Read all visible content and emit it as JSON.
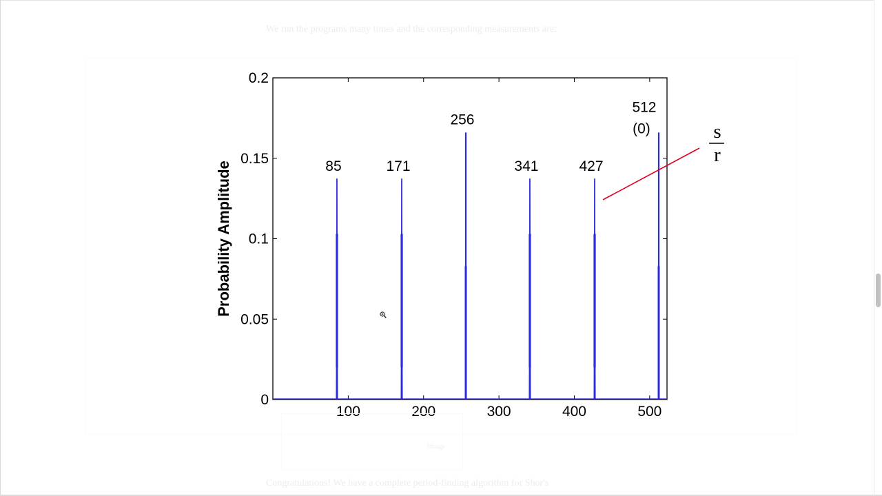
{
  "document": {
    "intro_text": "We run the programs many times and the corresponding measurements are:",
    "caption": "Image",
    "next_text": "Congratulations! We have a complete period-finding algorithm for Shor's"
  },
  "annotation": {
    "fraction_numerator": "s",
    "fraction_denominator": "r",
    "line_color": "#e00020"
  },
  "chart_data": {
    "type": "line",
    "xlabel": "",
    "ylabel": "Probability Amplitude",
    "xlim": [
      0,
      523
    ],
    "ylim": [
      0,
      0.2
    ],
    "x_ticks": [
      100,
      200,
      300,
      400,
      500
    ],
    "x_tick_labels": [
      "100",
      "200",
      "300",
      "400",
      "500"
    ],
    "y_ticks": [
      0,
      0.05,
      0.1,
      0.15,
      0.2
    ],
    "y_tick_labels": [
      "0",
      "0.05",
      "0.1",
      "0.15",
      "0.2"
    ],
    "series_color": "#2a2ae0",
    "peaks": [
      {
        "x": 85,
        "y": 0.137,
        "label": "85",
        "sharp": false
      },
      {
        "x": 171,
        "y": 0.137,
        "label": "171",
        "sharp": false
      },
      {
        "x": 256,
        "y": 0.166,
        "label": "256",
        "sharp": true
      },
      {
        "x": 341,
        "y": 0.137,
        "label": "341",
        "sharp": false
      },
      {
        "x": 427,
        "y": 0.137,
        "label": "427",
        "sharp": false
      },
      {
        "x": 512,
        "y": 0.166,
        "label": "512",
        "sublabel": "(0)",
        "sharp": true
      }
    ]
  }
}
